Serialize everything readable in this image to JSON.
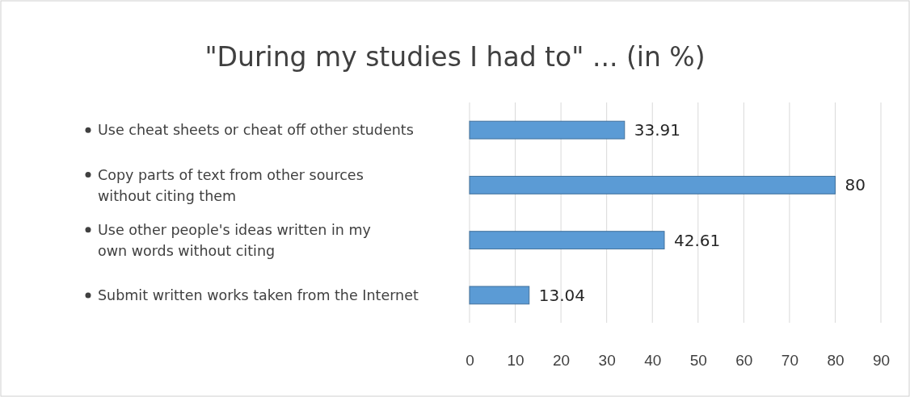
{
  "chart_data": {
    "type": "bar",
    "orientation": "horizontal",
    "title": "\"During my studies I had to\" ... (in %)",
    "categories": [
      "Use cheat sheets or cheat off other students",
      "Copy parts of text from other sources\nwithout citing them",
      "Use other people's ideas written in my\nown words without citing",
      "Submit written works taken from the Internet"
    ],
    "values": [
      33.91,
      80,
      42.61,
      13.04
    ],
    "color": "#5b9bd5",
    "xlim": [
      0,
      90
    ],
    "xticks": [
      0,
      10,
      20,
      30,
      40,
      50,
      60,
      70,
      80,
      90
    ],
    "grid": "x",
    "data_labels": true
  }
}
